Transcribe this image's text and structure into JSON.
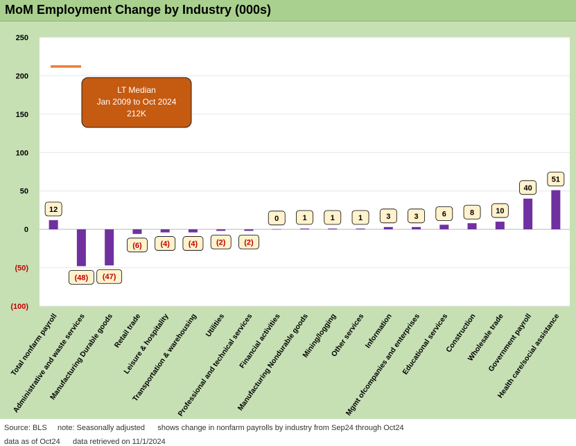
{
  "title": "MoM Employment Change by Industry (000s)",
  "footer": {
    "line1": "Source: BLS     note: Seasonally adjusted      shows change in nonfarm payrolls by industry from Sep24 through Oct24",
    "line2": "data as of Oct24      data retrieved on 11/1/2024"
  },
  "colors": {
    "bar": "#7030a0",
    "median_line": "#ed7d31",
    "median_box": "#c55a11",
    "negative_label": "#c00000",
    "label_fill": "#fff2cc",
    "frame": "#c6e0b4",
    "title_bar": "#a9d08e"
  },
  "chart_data": {
    "type": "bar",
    "categories": [
      "Total nonfarm payroll",
      "Administrative and waste services",
      "Manufacturing Durable goods",
      "Retail trade",
      "Leisure & hospitality",
      "Transportation & warehousing",
      "Utilities",
      "Professional and technical services",
      "Financial activities",
      "Manufacturing Nondurable goods",
      "Mining/logging",
      "Other services",
      "Information",
      "Mgmt ofcompanies and enterprises",
      "Educational services",
      "Construction",
      "Wholesale trade",
      "Government payroll",
      "Health care/social assistance"
    ],
    "values": [
      12,
      -48,
      -47,
      -6,
      -4,
      -4,
      -2,
      -2,
      0.3,
      1,
      1,
      1,
      3,
      3,
      6,
      8,
      10,
      40,
      51
    ],
    "data_labels": [
      "12",
      "(48)",
      "(47)",
      "(6)",
      "(4)",
      "(4)",
      "(2)",
      "(2)",
      "0",
      "1",
      "1",
      "1",
      "3",
      "3",
      "6",
      "8",
      "10",
      "40",
      "51"
    ],
    "ylim": [
      -100,
      250
    ],
    "yticks": [
      250,
      200,
      150,
      100,
      50,
      0,
      -50,
      -100
    ],
    "ytick_labels": [
      "250",
      "200",
      "150",
      "100",
      "50",
      "0",
      "(50)",
      "(100)"
    ],
    "grid": true,
    "legend": {
      "line_label": "",
      "placement": "top-left"
    },
    "annotation": {
      "lines": [
        "LT Median",
        "Jan 2009 to Oct 2024",
        "212K"
      ]
    }
  }
}
